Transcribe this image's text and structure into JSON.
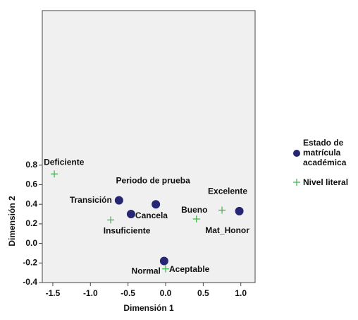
{
  "chart_data": {
    "type": "scatter",
    "xlabel": "Dimensión 1",
    "ylabel": "Dimensión 2",
    "xlim": [
      -1.64,
      1.19
    ],
    "ylim": [
      -0.4,
      2.38
    ],
    "xticks": [
      -1.5,
      {
        "value": -1,
        "label": "-1.0"
      },
      -0.5,
      {
        "value": 0,
        "label": "0.0"
      },
      0.5,
      {
        "value": 1,
        "label": "1.0"
      }
    ],
    "yticks": [
      0.8,
      0.6,
      0.4,
      0.2,
      {
        "value": 0,
        "label": "0.0"
      },
      -0.2,
      -0.4
    ],
    "series": [
      {
        "name": "Estado de matrícula académica",
        "color": "#262673",
        "marker": "circle",
        "labels": [
          "Transición",
          "Cancela",
          "Periodo de prueba",
          "Normal",
          "Mat_Honor"
        ],
        "x": [
          -0.62,
          -0.46,
          -0.13,
          -0.02,
          0.98
        ],
        "values": [
          0.44,
          0.3,
          0.4,
          -0.18,
          0.33
        ]
      },
      {
        "name": "Nivel literal",
        "color": "#3cb34a",
        "marker": "plus",
        "labels": [
          "Deficiente",
          "Insuficiente",
          "Aceptable",
          "Bueno",
          "Excelente"
        ],
        "x": [
          -1.48,
          -0.73,
          0.0,
          0.41,
          0.75
        ],
        "values": [
          0.71,
          0.24,
          -0.26,
          0.25,
          0.34
        ]
      }
    ]
  }
}
